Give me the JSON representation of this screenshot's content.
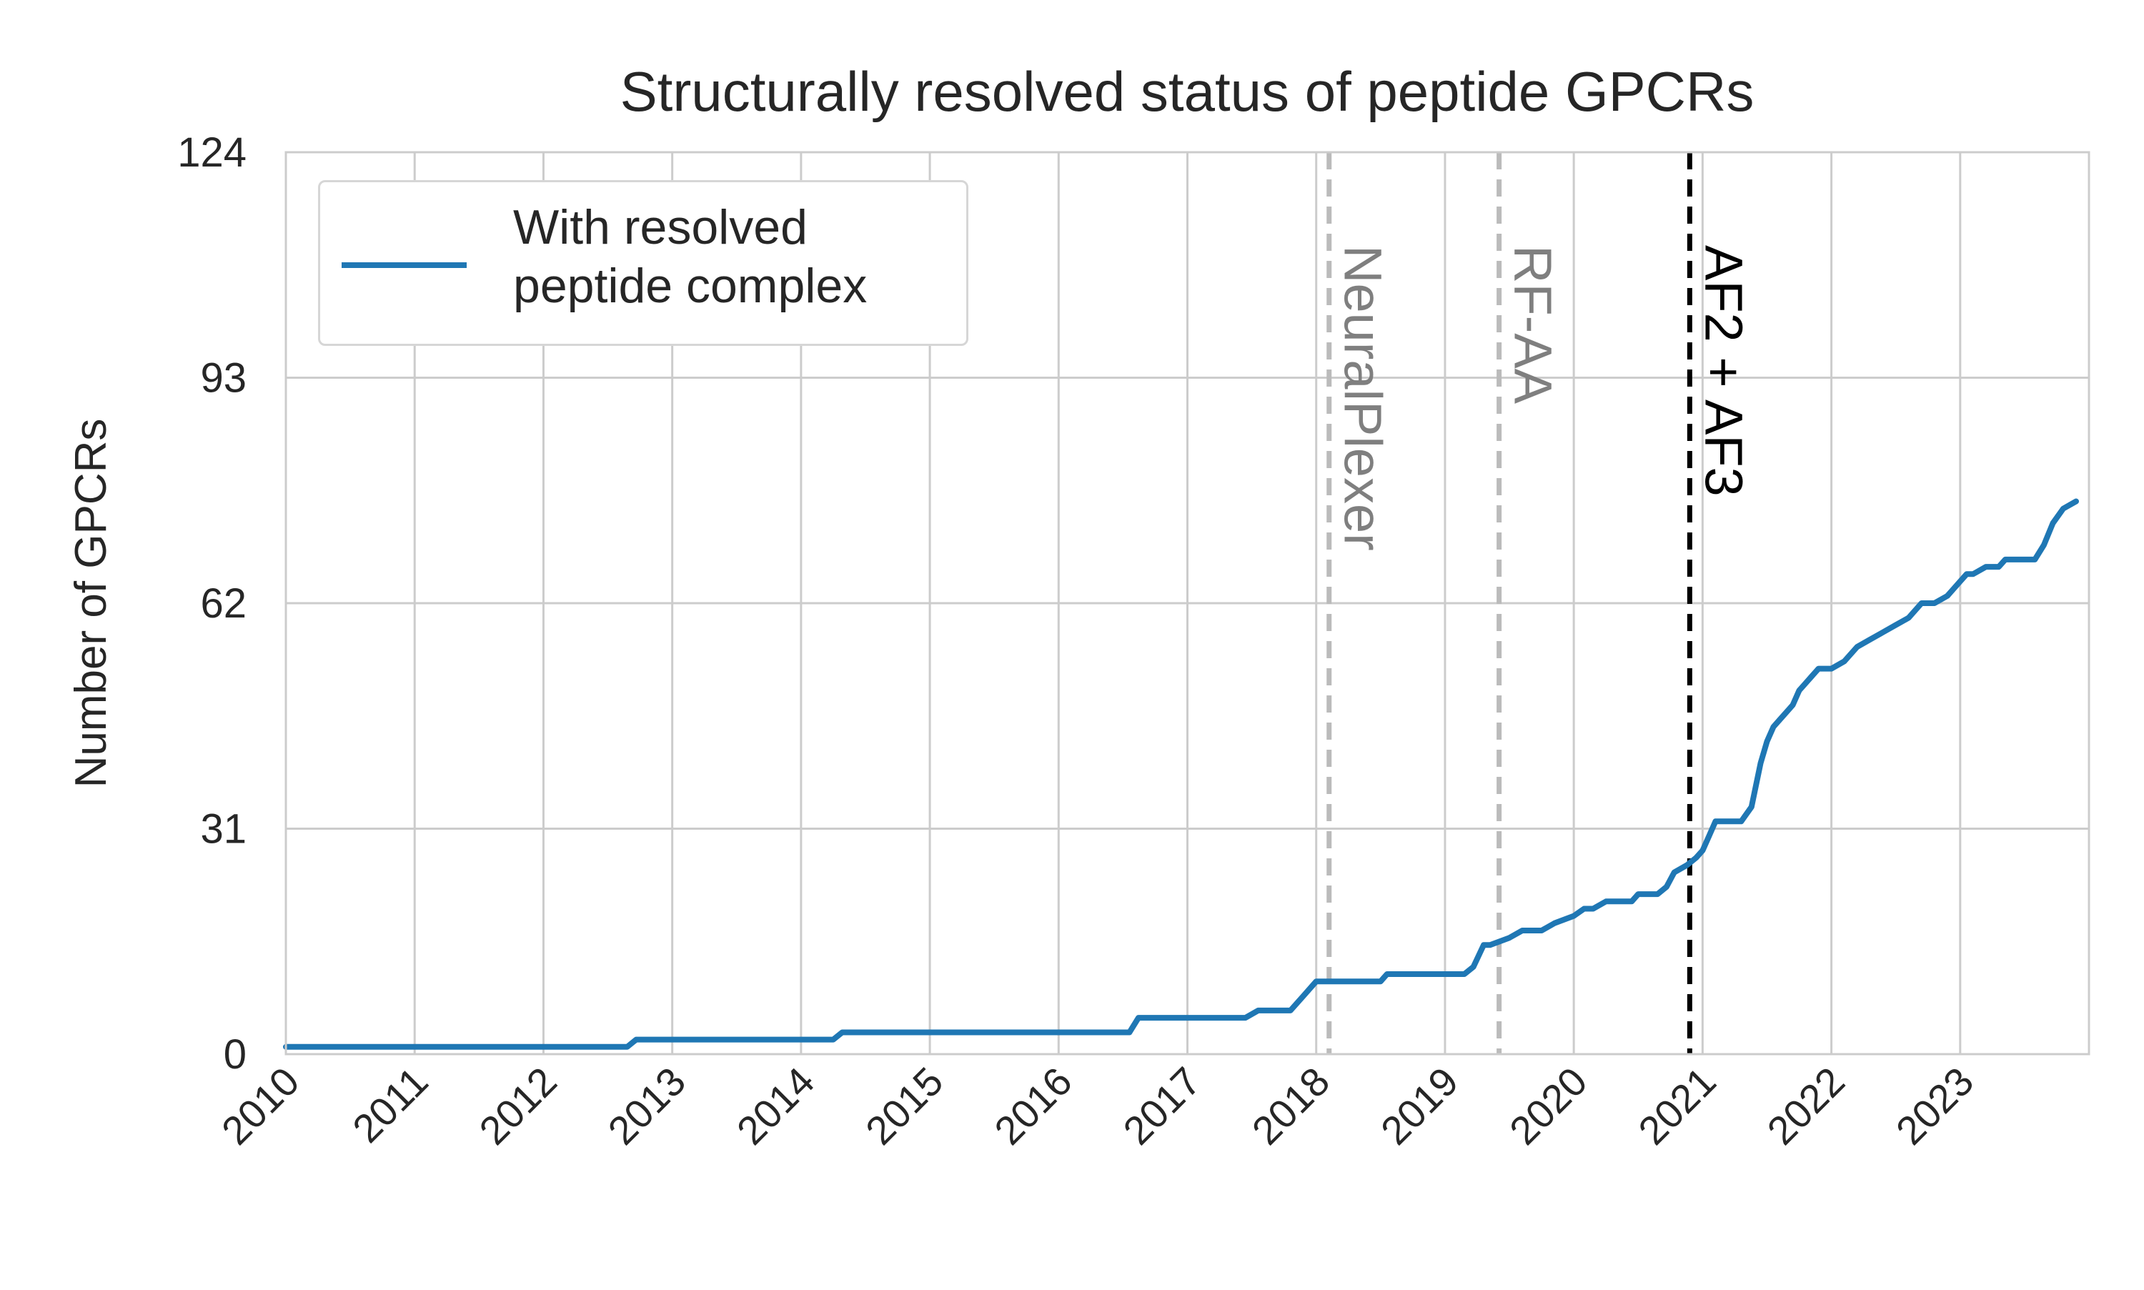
{
  "chart_data": {
    "type": "line",
    "title": "Structurally resolved status of peptide GPCRs",
    "xlabel": "",
    "ylabel": "Number of GPCRs",
    "xlim": [
      2010.0,
      2024.0
    ],
    "ylim": [
      0,
      124
    ],
    "x_ticks": [
      "2010",
      "2011",
      "2012",
      "2013",
      "2014",
      "2015",
      "2016",
      "2017",
      "2018",
      "2019",
      "2020",
      "2021",
      "2022",
      "2023"
    ],
    "y_ticks": [
      "0",
      "31",
      "62",
      "93",
      "124"
    ],
    "grid": true,
    "legend_position": "upper-left",
    "series": [
      {
        "name": "With resolved\npeptide complex",
        "color": "#1f77b4",
        "x": [
          2010.0,
          2012.65,
          2012.72,
          2014.25,
          2014.32,
          2016.55,
          2016.62,
          2017.45,
          2017.55,
          2017.8,
          2017.9,
          2018.0,
          2018.05,
          2018.5,
          2018.55,
          2018.75,
          2018.85,
          2019.15,
          2019.22,
          2019.3,
          2019.35,
          2019.5,
          2019.6,
          2019.75,
          2019.85,
          2020.0,
          2020.08,
          2020.15,
          2020.25,
          2020.45,
          2020.5,
          2020.65,
          2020.72,
          2020.78,
          2020.88,
          2020.95,
          2021.0,
          2021.05,
          2021.1,
          2021.3,
          2021.38,
          2021.45,
          2021.5,
          2021.55,
          2021.6,
          2021.65,
          2021.7,
          2021.75,
          2021.8,
          2021.85,
          2021.9,
          2021.95,
          2022.0,
          2022.1,
          2022.2,
          2022.3,
          2022.4,
          2022.5,
          2022.6,
          2022.7,
          2022.8,
          2022.9,
          2022.95,
          2023.05,
          2023.1,
          2023.2,
          2023.3,
          2023.35,
          2023.5,
          2023.58,
          2023.65,
          2023.72,
          2023.8,
          2023.9
        ],
        "y": [
          1,
          1,
          2,
          2,
          3,
          3,
          5,
          5,
          6,
          6,
          8,
          10,
          10,
          10,
          11,
          11,
          11,
          11,
          12,
          15,
          15,
          16,
          17,
          17,
          18,
          19,
          20,
          20,
          21,
          21,
          22,
          22,
          23,
          25,
          26,
          27,
          28,
          30,
          32,
          32,
          34,
          40,
          43,
          45,
          46,
          47,
          48,
          50,
          51,
          52,
          53,
          53,
          53,
          54,
          56,
          57,
          58,
          59,
          60,
          62,
          62,
          63,
          64,
          66,
          66,
          67,
          67,
          68,
          68,
          68,
          70,
          73,
          75,
          76
        ]
      }
    ],
    "vlines": [
      {
        "x": 2018.1,
        "label": "NeuralPlexer",
        "color": "#bbbbbb",
        "label_color": "#7f7f7f"
      },
      {
        "x": 2019.42,
        "label": "RF-AA",
        "color": "#bbbbbb",
        "label_color": "#7f7f7f"
      },
      {
        "x": 2020.9,
        "label": "AF2 + AF3",
        "color": "#000000",
        "label_color": "#000000"
      }
    ]
  }
}
